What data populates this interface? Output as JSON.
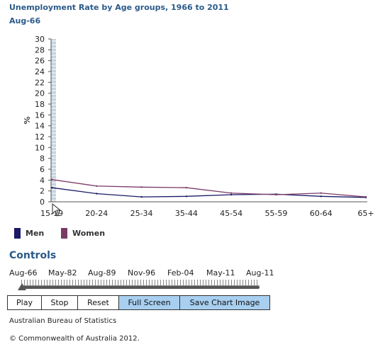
{
  "header": {
    "title": "Unemployment Rate by Age groups, 1966 to 2011",
    "period": "Aug-66"
  },
  "chart_data": {
    "type": "line",
    "title": "Unemployment Rate by Age groups, 1966 to 2011",
    "ylabel": "%",
    "xlabel": "",
    "categories": [
      "15-19",
      "20-24",
      "25-34",
      "35-44",
      "45-54",
      "55-59",
      "60-64",
      "65+"
    ],
    "ylim": [
      0,
      30
    ],
    "yticks": [
      0,
      2,
      4,
      6,
      8,
      10,
      12,
      14,
      16,
      18,
      20,
      22,
      24,
      26,
      28,
      30
    ],
    "grid": false,
    "legend_position": "bottom-left",
    "series": [
      {
        "name": "Men",
        "color": "#1a1a66",
        "values": [
          2.6,
          1.5,
          0.9,
          1.0,
          1.3,
          1.4,
          1.0,
          0.8
        ]
      },
      {
        "name": "Women",
        "color": "#7a3a66",
        "values": [
          4.1,
          2.9,
          2.7,
          2.6,
          1.6,
          1.3,
          1.6,
          0.9
        ]
      }
    ]
  },
  "legend": {
    "items": [
      {
        "label": "Men",
        "color": "#1a1a66"
      },
      {
        "label": "Women",
        "color": "#7a3a66"
      }
    ]
  },
  "controls": {
    "title": "Controls",
    "timeline_labels": [
      "Aug-66",
      "May-82",
      "Aug-89",
      "Nov-96",
      "Feb-04",
      "May-11",
      "Aug-11"
    ],
    "slider_position": 0,
    "buttons": {
      "play": "Play",
      "stop": "Stop",
      "reset": "Reset",
      "full_screen": "Full Screen",
      "save_image": "Save Chart Image"
    }
  },
  "footer": {
    "source": "Australian Bureau of Statistics",
    "copyright": "© Commonwealth of Australia 2012."
  }
}
